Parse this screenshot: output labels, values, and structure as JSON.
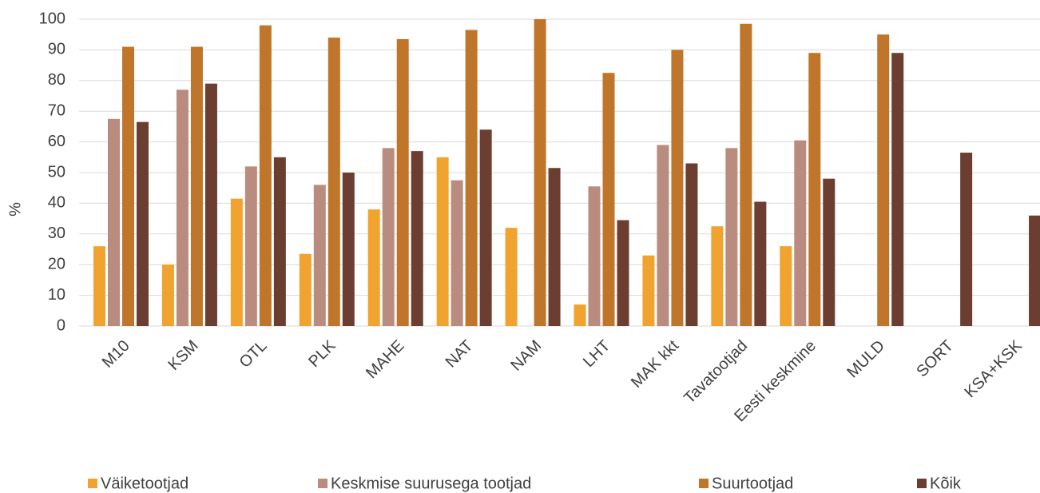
{
  "chart_data": {
    "type": "bar",
    "y_label": "%",
    "categories": [
      "M10",
      "KSM",
      "OTL",
      "PLK",
      "MAHE",
      "NAT",
      "NAM",
      "LHT",
      "MAK kkt",
      "Tavatootjad",
      "Eesti keskmine",
      "MULD",
      "SORT",
      "KSA+KSK"
    ],
    "series": [
      {
        "name": "Väiketootjad",
        "color": "#f0a32e",
        "values": [
          26,
          20,
          41.5,
          23.5,
          38,
          55,
          32,
          7,
          23,
          32.5,
          26,
          null,
          null,
          null
        ]
      },
      {
        "name": "Keskmise suurusega tootjad",
        "color": "#b98c7f",
        "values": [
          67.5,
          77,
          52,
          46,
          58,
          47.5,
          null,
          45.5,
          59,
          58,
          60.5,
          null,
          null,
          null
        ]
      },
      {
        "name": "Suurtootjad",
        "color": "#c0762a",
        "values": [
          91,
          91,
          98,
          94,
          93.5,
          96.5,
          100,
          82.5,
          90,
          98.5,
          89,
          95,
          null,
          null
        ]
      },
      {
        "name": "Kõik",
        "color": "#6b3e31",
        "values": [
          66.5,
          79,
          55,
          50,
          57,
          64,
          51.5,
          34.5,
          53,
          40.5,
          48,
          89,
          56.5,
          36
        ]
      }
    ],
    "ylim": [
      0,
      100
    ],
    "yticks": [
      0,
      10,
      20,
      30,
      40,
      50,
      60,
      70,
      80,
      90,
      100
    ],
    "grid": true,
    "legend": "bottom"
  }
}
